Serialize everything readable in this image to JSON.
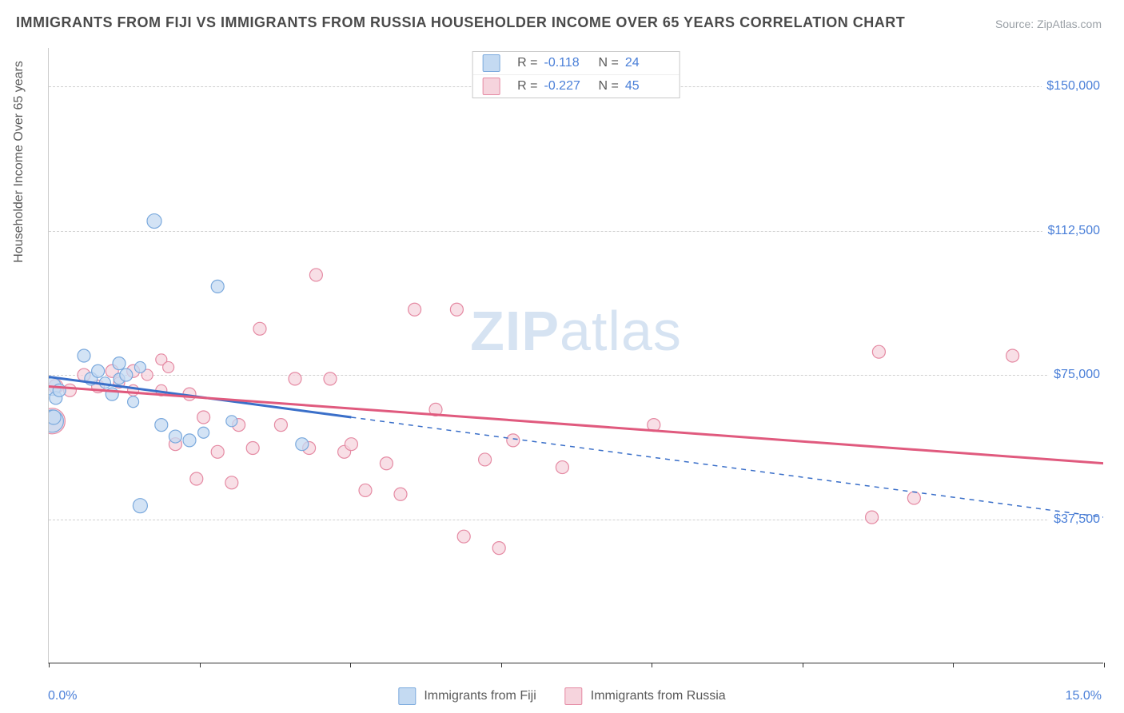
{
  "title": "IMMIGRANTS FROM FIJI VS IMMIGRANTS FROM RUSSIA HOUSEHOLDER INCOME OVER 65 YEARS CORRELATION CHART",
  "source_label": "Source: ",
  "source_name": "ZipAtlas.com",
  "watermark_bold": "ZIP",
  "watermark_rest": "atlas",
  "chart": {
    "type": "scatter",
    "background_color": "#ffffff",
    "grid_color": "#d0d0d0",
    "x_axis": {
      "min": 0.0,
      "max": 15.0,
      "label_min": "0.0%",
      "label_max": "15.0%",
      "tick_count": 8,
      "label_color": "#4a7fd8"
    },
    "y_axis": {
      "min": 0,
      "max": 160000,
      "title": "Householder Income Over 65 years",
      "gridlines": [
        37500,
        75000,
        112500,
        150000
      ],
      "labels": [
        "$37,500",
        "$75,000",
        "$112,500",
        "$150,000"
      ],
      "label_color": "#4a7fd8"
    },
    "series": [
      {
        "id": "fiji",
        "label": "Immigrants from Fiji",
        "fill": "#c4daf2",
        "stroke": "#7aa9dd",
        "line_color": "#3a6fc9",
        "r_value": "-0.118",
        "n_value": "24",
        "trend": {
          "x0": 0.0,
          "y0": 74500,
          "x1": 4.3,
          "y1": 64000,
          "dash_x_to": 15.0,
          "dash_y_to": 38000
        },
        "line_width": 3,
        "points": [
          {
            "x": 0.05,
            "y": 72000,
            "r": 11
          },
          {
            "x": 0.1,
            "y": 69000,
            "r": 8
          },
          {
            "x": 0.15,
            "y": 71000,
            "r": 8
          },
          {
            "x": 0.05,
            "y": 63000,
            "r": 14
          },
          {
            "x": 0.07,
            "y": 64000,
            "r": 9
          },
          {
            "x": 0.5,
            "y": 80000,
            "r": 8
          },
          {
            "x": 0.6,
            "y": 74000,
            "r": 8
          },
          {
            "x": 0.7,
            "y": 76000,
            "r": 8
          },
          {
            "x": 0.9,
            "y": 70000,
            "r": 8
          },
          {
            "x": 0.8,
            "y": 73000,
            "r": 7
          },
          {
            "x": 1.0,
            "y": 78000,
            "r": 8
          },
          {
            "x": 1.0,
            "y": 74000,
            "r": 7
          },
          {
            "x": 1.1,
            "y": 75000,
            "r": 8
          },
          {
            "x": 1.2,
            "y": 68000,
            "r": 7
          },
          {
            "x": 1.3,
            "y": 77000,
            "r": 7
          },
          {
            "x": 1.5,
            "y": 115000,
            "r": 9
          },
          {
            "x": 1.3,
            "y": 41000,
            "r": 9
          },
          {
            "x": 1.6,
            "y": 62000,
            "r": 8
          },
          {
            "x": 1.8,
            "y": 59000,
            "r": 8
          },
          {
            "x": 2.0,
            "y": 58000,
            "r": 8
          },
          {
            "x": 2.2,
            "y": 60000,
            "r": 7
          },
          {
            "x": 2.4,
            "y": 98000,
            "r": 8
          },
          {
            "x": 2.6,
            "y": 63000,
            "r": 7
          },
          {
            "x": 3.6,
            "y": 57000,
            "r": 8
          }
        ]
      },
      {
        "id": "russia",
        "label": "Immigrants from Russia",
        "fill": "#f6d4dd",
        "stroke": "#e58aa3",
        "line_color": "#e05a7e",
        "r_value": "-0.227",
        "n_value": "45",
        "trend": {
          "x0": 0.0,
          "y0": 72000,
          "x1": 15.0,
          "y1": 52000
        },
        "line_width": 3,
        "points": [
          {
            "x": 0.05,
            "y": 63000,
            "r": 16
          },
          {
            "x": 0.1,
            "y": 72000,
            "r": 9
          },
          {
            "x": 0.3,
            "y": 71000,
            "r": 8
          },
          {
            "x": 0.5,
            "y": 75000,
            "r": 8
          },
          {
            "x": 0.7,
            "y": 72000,
            "r": 8
          },
          {
            "x": 0.9,
            "y": 76000,
            "r": 8
          },
          {
            "x": 1.0,
            "y": 73000,
            "r": 7
          },
          {
            "x": 1.2,
            "y": 76000,
            "r": 8
          },
          {
            "x": 1.2,
            "y": 71000,
            "r": 7
          },
          {
            "x": 1.4,
            "y": 75000,
            "r": 7
          },
          {
            "x": 1.6,
            "y": 71000,
            "r": 7
          },
          {
            "x": 1.6,
            "y": 79000,
            "r": 7
          },
          {
            "x": 1.7,
            "y": 77000,
            "r": 7
          },
          {
            "x": 1.8,
            "y": 57000,
            "r": 8
          },
          {
            "x": 2.0,
            "y": 70000,
            "r": 8
          },
          {
            "x": 2.1,
            "y": 48000,
            "r": 8
          },
          {
            "x": 2.2,
            "y": 64000,
            "r": 8
          },
          {
            "x": 2.4,
            "y": 55000,
            "r": 8
          },
          {
            "x": 2.6,
            "y": 47000,
            "r": 8
          },
          {
            "x": 2.7,
            "y": 62000,
            "r": 8
          },
          {
            "x": 2.9,
            "y": 56000,
            "r": 8
          },
          {
            "x": 3.0,
            "y": 87000,
            "r": 8
          },
          {
            "x": 3.3,
            "y": 62000,
            "r": 8
          },
          {
            "x": 3.5,
            "y": 74000,
            "r": 8
          },
          {
            "x": 3.7,
            "y": 56000,
            "r": 8
          },
          {
            "x": 3.8,
            "y": 101000,
            "r": 8
          },
          {
            "x": 4.0,
            "y": 74000,
            "r": 8
          },
          {
            "x": 4.2,
            "y": 55000,
            "r": 8
          },
          {
            "x": 4.3,
            "y": 57000,
            "r": 8
          },
          {
            "x": 4.5,
            "y": 45000,
            "r": 8
          },
          {
            "x": 4.8,
            "y": 52000,
            "r": 8
          },
          {
            "x": 5.0,
            "y": 44000,
            "r": 8
          },
          {
            "x": 5.2,
            "y": 92000,
            "r": 8
          },
          {
            "x": 5.5,
            "y": 66000,
            "r": 8
          },
          {
            "x": 5.8,
            "y": 92000,
            "r": 8
          },
          {
            "x": 5.9,
            "y": 33000,
            "r": 8
          },
          {
            "x": 6.2,
            "y": 53000,
            "r": 8
          },
          {
            "x": 6.6,
            "y": 58000,
            "r": 8
          },
          {
            "x": 6.4,
            "y": 30000,
            "r": 8
          },
          {
            "x": 7.3,
            "y": 51000,
            "r": 8
          },
          {
            "x": 8.6,
            "y": 62000,
            "r": 8
          },
          {
            "x": 11.8,
            "y": 81000,
            "r": 8
          },
          {
            "x": 11.7,
            "y": 38000,
            "r": 8
          },
          {
            "x": 12.3,
            "y": 43000,
            "r": 8
          },
          {
            "x": 13.7,
            "y": 80000,
            "r": 8
          }
        ]
      }
    ]
  }
}
